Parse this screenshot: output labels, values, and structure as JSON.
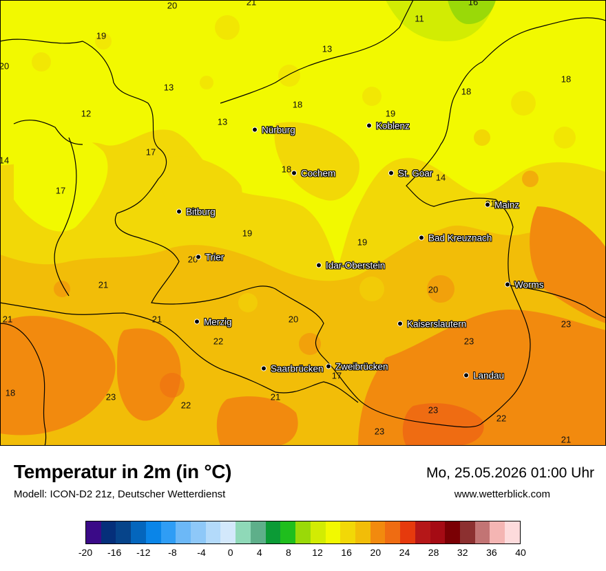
{
  "map": {
    "cities": [
      {
        "name": "Nürburg"
      },
      {
        "name": "Koblenz"
      },
      {
        "name": "Cochem"
      },
      {
        "name": "St. Goar"
      },
      {
        "name": "Mainz"
      },
      {
        "name": "Bitburg"
      },
      {
        "name": "Bad Kreuznach"
      },
      {
        "name": "Trier"
      },
      {
        "name": "Idar-Oberstein"
      },
      {
        "name": "Worms"
      },
      {
        "name": "Merzig"
      },
      {
        "name": "Kaiserslautern"
      },
      {
        "name": "Saarbrücken"
      },
      {
        "name": "Zweibrücken"
      },
      {
        "name": "Landau"
      }
    ],
    "values": [
      "20",
      "21",
      "16",
      "19",
      "11",
      "20",
      "13",
      "13",
      "18",
      "18",
      "12",
      "18",
      "13",
      "19",
      "17",
      "14",
      "18",
      "14",
      "17",
      "21",
      "19",
      "19",
      "20",
      "20",
      "21",
      "21",
      "21",
      "20",
      "23",
      "22",
      "23",
      "17",
      "18",
      "21",
      "23",
      "22",
      "23",
      "22",
      "23",
      "21"
    ]
  },
  "footer": {
    "title": "Temperatur in 2m (in °C)",
    "subtitle": "Modell: ICON-D2 21z, Deutscher Wetterdienst",
    "datetime": "Mo, 25.05.2026 01:00 Uhr",
    "website": "www.wetterblick.com"
  },
  "legend": {
    "colors": [
      "#3a0a87",
      "#052f7a",
      "#06448a",
      "#0466bd",
      "#0a85e8",
      "#2f9df5",
      "#6cb8f7",
      "#8ec8f8",
      "#b3dafa",
      "#d3e8fb",
      "#8fd9b8",
      "#5eaf8a",
      "#0b9b36",
      "#1fbe1d",
      "#9ad908",
      "#d2ec03",
      "#f2f900",
      "#f2d807",
      "#f2bd08",
      "#f28a0e",
      "#ef6c12",
      "#e63a0d",
      "#b51718",
      "#a50b14",
      "#7a0004",
      "#8c3030",
      "#c27474",
      "#f4b5b3",
      "#fddbdc"
    ],
    "ticks": [
      "-20",
      "-16",
      "-12",
      "-8",
      "-4",
      "0",
      "4",
      "8",
      "12",
      "16",
      "20",
      "24",
      "28",
      "32",
      "36",
      "40"
    ]
  }
}
